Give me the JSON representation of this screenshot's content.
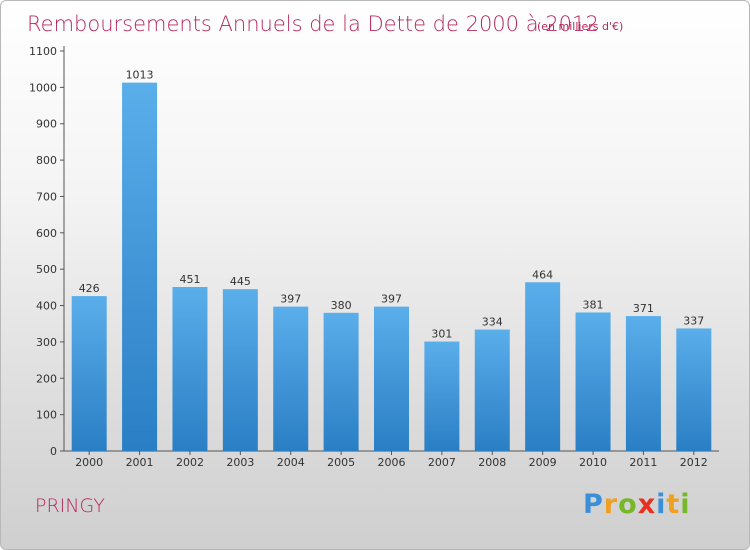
{
  "title": "Remboursements Annuels de la Dette de 2000 à 2012",
  "subtitle": "(en milliers d'€)",
  "commune": "PRINGY",
  "logo": {
    "letters": [
      "P",
      "r",
      "o",
      "x",
      "i",
      "t",
      "i"
    ],
    "colors": [
      "#3a8fd8",
      "#f0a020",
      "#78b828",
      "#e83020",
      "#3a8fd8",
      "#f0a020",
      "#78b828"
    ]
  },
  "colors": {
    "bar_top": "#5aaeea",
    "bar_bottom": "#2a7ec4",
    "accent": "#b5285c"
  },
  "chart_data": {
    "type": "bar",
    "title": "Remboursements Annuels de la Dette de 2000 à 2012",
    "subtitle": "(en milliers d'€)",
    "xlabel": "",
    "ylabel": "",
    "ylim": [
      0,
      1100
    ],
    "yticks": [
      0,
      100,
      200,
      300,
      400,
      500,
      600,
      700,
      800,
      900,
      1000,
      1100
    ],
    "grid": false,
    "categories": [
      "2000",
      "2001",
      "2002",
      "2003",
      "2004",
      "2005",
      "2006",
      "2007",
      "2008",
      "2009",
      "2010",
      "2011",
      "2012"
    ],
    "values": [
      426,
      1013,
      451,
      445,
      397,
      380,
      397,
      301,
      334,
      464,
      381,
      371,
      337
    ]
  }
}
